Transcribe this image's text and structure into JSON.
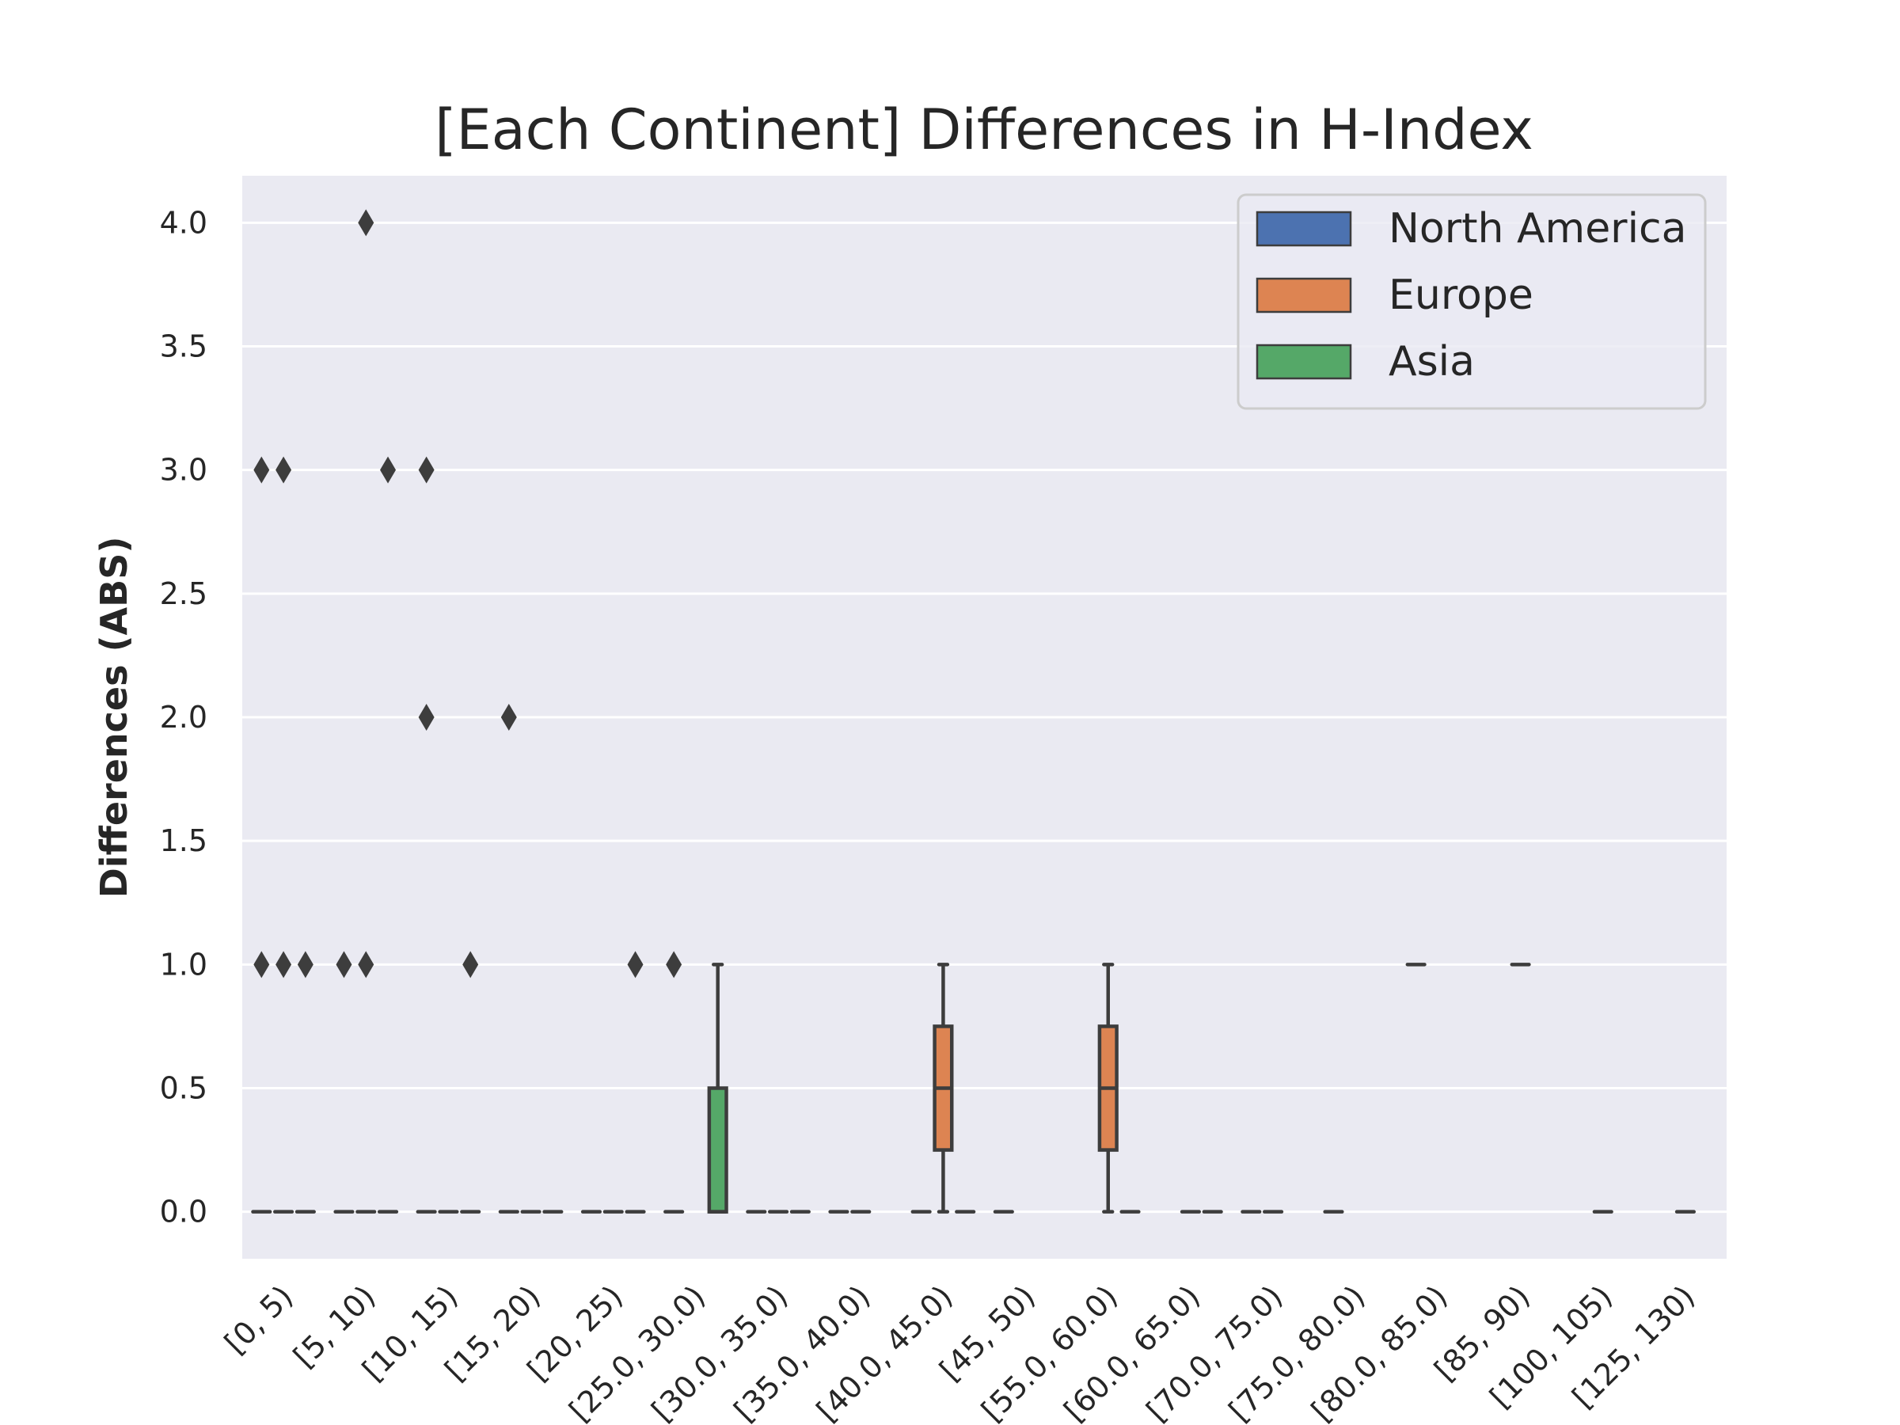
{
  "chart_data": {
    "type": "box",
    "title": "[Each Continent] Differences in H-Index",
    "xlabel": "",
    "ylabel": "Differences (ABS)",
    "ylim": [
      -0.19,
      4.19
    ],
    "yticks": [
      0.0,
      0.5,
      1.0,
      1.5,
      2.0,
      2.5,
      3.0,
      3.5,
      4.0
    ],
    "ytick_labels": [
      "0.0",
      "0.5",
      "1.0",
      "1.5",
      "2.0",
      "2.5",
      "3.0",
      "3.5",
      "4.0"
    ],
    "grid": true,
    "legend_position": "top-right",
    "categories": [
      "[0, 5)",
      "[5, 10)",
      "[10, 15)",
      "[15, 20)",
      "[20, 25)",
      "[25.0, 30.0)",
      "[30.0, 35.0)",
      "[35.0, 40.0)",
      "[40.0, 45.0)",
      "[45, 50)",
      "[55.0, 60.0)",
      "[60.0, 65.0)",
      "[70.0, 75.0)",
      "[75.0, 80.0)",
      "[80.0, 85.0)",
      "[85, 90)",
      "[100, 105)",
      "[125, 130)"
    ],
    "series": [
      {
        "name": "North America",
        "color": "#4c72b0",
        "boxes": [
          {
            "category": 0,
            "q1": 0,
            "median": 0,
            "q3": 0,
            "whisker_low": 0,
            "whisker_high": 0,
            "outliers": [
              3,
              1
            ]
          },
          {
            "category": 1,
            "q1": 0,
            "median": 0,
            "q3": 0,
            "whisker_low": 0,
            "whisker_high": 0,
            "outliers": [
              1
            ]
          },
          {
            "category": 2,
            "q1": 0,
            "median": 0,
            "q3": 0,
            "whisker_low": 0,
            "whisker_high": 0,
            "outliers": [
              3,
              2
            ]
          },
          {
            "category": 3,
            "q1": 0,
            "median": 0,
            "q3": 0,
            "whisker_low": 0,
            "whisker_high": 0,
            "outliers": [
              2
            ]
          },
          {
            "category": 4,
            "q1": 0,
            "median": 0,
            "q3": 0,
            "whisker_low": 0,
            "whisker_high": 0,
            "outliers": []
          },
          {
            "category": 5,
            "q1": 0,
            "median": 0,
            "q3": 0,
            "whisker_low": 0,
            "whisker_high": 0,
            "outliers": [
              1
            ]
          },
          {
            "category": 6,
            "q1": 0,
            "median": 0,
            "q3": 0,
            "whisker_low": 0,
            "whisker_high": 0,
            "outliers": []
          },
          {
            "category": 7,
            "q1": 0,
            "median": 0,
            "q3": 0,
            "whisker_low": 0,
            "whisker_high": 0,
            "outliers": []
          },
          {
            "category": 8,
            "q1": 0,
            "median": 0,
            "q3": 0,
            "whisker_low": 0,
            "whisker_high": 0,
            "outliers": []
          },
          {
            "category": 9,
            "q1": 0,
            "median": 0,
            "q3": 0,
            "whisker_low": 0,
            "whisker_high": 0,
            "outliers": []
          },
          {
            "category": 12,
            "q1": 0,
            "median": 0,
            "q3": 0,
            "whisker_low": 0,
            "whisker_high": 0,
            "outliers": []
          },
          {
            "category": 13,
            "q1": 0,
            "median": 0,
            "q3": 0,
            "whisker_low": 0,
            "whisker_high": 0,
            "outliers": []
          },
          {
            "category": 14,
            "q1": 1,
            "median": 1,
            "q3": 1,
            "whisker_low": 1,
            "whisker_high": 1,
            "outliers": []
          }
        ]
      },
      {
        "name": "Europe",
        "color": "#dd8452",
        "boxes": [
          {
            "category": 0,
            "q1": 0,
            "median": 0,
            "q3": 0,
            "whisker_low": 0,
            "whisker_high": 0,
            "outliers": [
              3,
              1
            ]
          },
          {
            "category": 1,
            "q1": 0,
            "median": 0,
            "q3": 0,
            "whisker_low": 0,
            "whisker_high": 0,
            "outliers": [
              4,
              1
            ]
          },
          {
            "category": 2,
            "q1": 0,
            "median": 0,
            "q3": 0,
            "whisker_low": 0,
            "whisker_high": 0,
            "outliers": []
          },
          {
            "category": 3,
            "q1": 0,
            "median": 0,
            "q3": 0,
            "whisker_low": 0,
            "whisker_high": 0,
            "outliers": []
          },
          {
            "category": 4,
            "q1": 0,
            "median": 0,
            "q3": 0,
            "whisker_low": 0,
            "whisker_high": 0,
            "outliers": []
          },
          {
            "category": 6,
            "q1": 0,
            "median": 0,
            "q3": 0,
            "whisker_low": 0,
            "whisker_high": 0,
            "outliers": []
          },
          {
            "category": 7,
            "q1": 0,
            "median": 0,
            "q3": 0,
            "whisker_low": 0,
            "whisker_high": 0,
            "outliers": []
          },
          {
            "category": 8,
            "q1": 0.25,
            "median": 0.5,
            "q3": 0.75,
            "whisker_low": 0,
            "whisker_high": 1,
            "outliers": []
          },
          {
            "category": 10,
            "q1": 0.25,
            "median": 0.5,
            "q3": 0.75,
            "whisker_low": 0,
            "whisker_high": 1,
            "outliers": []
          },
          {
            "category": 11,
            "q1": 0,
            "median": 0,
            "q3": 0,
            "whisker_low": 0,
            "whisker_high": 0,
            "outliers": []
          },
          {
            "category": 12,
            "q1": 0,
            "median": 0,
            "q3": 0,
            "whisker_low": 0,
            "whisker_high": 0,
            "outliers": []
          },
          {
            "category": 15,
            "q1": 1,
            "median": 1,
            "q3": 1,
            "whisker_low": 1,
            "whisker_high": 1,
            "outliers": []
          },
          {
            "category": 16,
            "q1": 0,
            "median": 0,
            "q3": 0,
            "whisker_low": 0,
            "whisker_high": 0,
            "outliers": []
          },
          {
            "category": 17,
            "q1": 0,
            "median": 0,
            "q3": 0,
            "whisker_low": 0,
            "whisker_high": 0,
            "outliers": []
          }
        ]
      },
      {
        "name": "Asia",
        "color": "#55a868",
        "boxes": [
          {
            "category": 0,
            "q1": 0,
            "median": 0,
            "q3": 0,
            "whisker_low": 0,
            "whisker_high": 0,
            "outliers": [
              1
            ]
          },
          {
            "category": 1,
            "q1": 0,
            "median": 0,
            "q3": 0,
            "whisker_low": 0,
            "whisker_high": 0,
            "outliers": [
              3
            ]
          },
          {
            "category": 2,
            "q1": 0,
            "median": 0,
            "q3": 0,
            "whisker_low": 0,
            "whisker_high": 0,
            "outliers": [
              1
            ]
          },
          {
            "category": 3,
            "q1": 0,
            "median": 0,
            "q3": 0,
            "whisker_low": 0,
            "whisker_high": 0,
            "outliers": []
          },
          {
            "category": 4,
            "q1": 0,
            "median": 0,
            "q3": 0,
            "whisker_low": 0,
            "whisker_high": 0,
            "outliers": [
              1
            ]
          },
          {
            "category": 5,
            "q1": 0,
            "median": 0,
            "q3": 0.5,
            "whisker_low": 0,
            "whisker_high": 1,
            "outliers": []
          },
          {
            "category": 6,
            "q1": 0,
            "median": 0,
            "q3": 0,
            "whisker_low": 0,
            "whisker_high": 0,
            "outliers": []
          },
          {
            "category": 8,
            "q1": 0,
            "median": 0,
            "q3": 0,
            "whisker_low": 0,
            "whisker_high": 0,
            "outliers": []
          },
          {
            "category": 10,
            "q1": 0,
            "median": 0,
            "q3": 0,
            "whisker_low": 0,
            "whisker_high": 0,
            "outliers": []
          },
          {
            "category": 11,
            "q1": 0,
            "median": 0,
            "q3": 0,
            "whisker_low": 0,
            "whisker_high": 0,
            "outliers": []
          }
        ]
      }
    ]
  }
}
